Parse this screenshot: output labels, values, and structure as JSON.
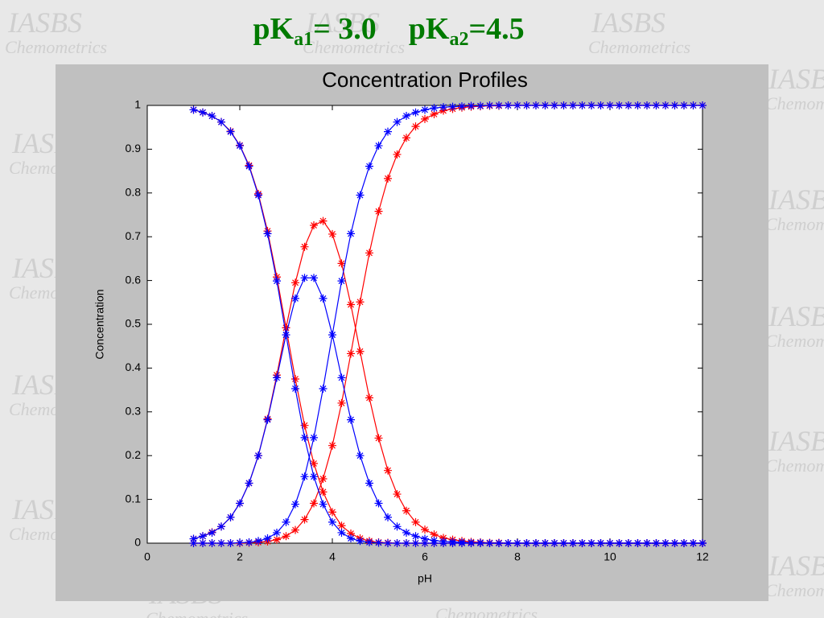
{
  "slide_title": [
    "pK",
    "a1",
    "= 3.0",
    "pK",
    "a2",
    "=4.5"
  ],
  "watermark": [
    "IASBS",
    "Chemometrics"
  ],
  "chart_data": {
    "type": "line",
    "title": "Concentration Profiles",
    "x_label": "pH",
    "y_label": "Concentration",
    "marker": "asterisk",
    "xlim": [
      0,
      12
    ],
    "xticks": [
      0,
      2,
      4,
      6,
      8,
      10,
      12
    ],
    "ylim": [
      0,
      1
    ],
    "yticks": [
      0,
      0.1,
      0.2,
      0.3,
      0.4,
      0.5,
      0.6,
      0.7,
      0.8,
      0.9,
      1
    ],
    "grid": false,
    "x": [
      1,
      1.2,
      1.4,
      1.6,
      1.8,
      2,
      2.2,
      2.4,
      2.6,
      2.8,
      3,
      3.2,
      3.4,
      3.6,
      3.8,
      4,
      4.2,
      4.4,
      4.6,
      4.8,
      5,
      5.2,
      5.4,
      5.6,
      5.8,
      6,
      6.2,
      6.4,
      6.6,
      6.8,
      7,
      7.2,
      7.4,
      7.6,
      7.8,
      8,
      8.2,
      8.4,
      8.6,
      8.8,
      9,
      9.2,
      9.4,
      9.6,
      9.8,
      10,
      10.2,
      10.4,
      10.6,
      10.8,
      11,
      11.2,
      11.4,
      11.6,
      11.8,
      12
    ],
    "series": [
      {
        "color": "#ff0000",
        "values": [
          0.99,
          0.984,
          0.976,
          0.962,
          0.941,
          0.909,
          0.863,
          0.798,
          0.713,
          0.608,
          0.492,
          0.375,
          0.269,
          0.182,
          0.117,
          0.071,
          0.04,
          0.022,
          0.011,
          0.005,
          0.002,
          0.001,
          0,
          0,
          0,
          0,
          0,
          0,
          0,
          0,
          0,
          0,
          0,
          0,
          0,
          0,
          0,
          0,
          0,
          0,
          0,
          0,
          0,
          0,
          0,
          0,
          0,
          0,
          0,
          0,
          0,
          0,
          0,
          0,
          0,
          0
        ]
      },
      {
        "color": "#ff0000",
        "values": [
          0.01,
          0.016,
          0.025,
          0.038,
          0.059,
          0.091,
          0.137,
          0.2,
          0.284,
          0.384,
          0.492,
          0.595,
          0.677,
          0.726,
          0.736,
          0.706,
          0.639,
          0.545,
          0.438,
          0.332,
          0.24,
          0.166,
          0.112,
          0.074,
          0.048,
          0.031,
          0.02,
          0.012,
          0.008,
          0.005,
          0.003,
          0.002,
          0.001,
          0.001,
          0,
          0,
          0,
          0,
          0,
          0,
          0,
          0,
          0,
          0,
          0,
          0,
          0,
          0,
          0,
          0,
          0,
          0,
          0,
          0,
          0,
          0
        ]
      },
      {
        "color": "#ff0000",
        "values": [
          0,
          0,
          0,
          0,
          0,
          0,
          0.001,
          0.002,
          0.004,
          0.008,
          0.016,
          0.03,
          0.054,
          0.091,
          0.147,
          0.223,
          0.32,
          0.433,
          0.551,
          0.663,
          0.758,
          0.833,
          0.888,
          0.926,
          0.952,
          0.969,
          0.98,
          0.988,
          0.992,
          0.995,
          0.997,
          0.998,
          0.999,
          0.999,
          1,
          1,
          1,
          1,
          1,
          1,
          1,
          1,
          1,
          1,
          1,
          1,
          1,
          1,
          1,
          1,
          1,
          1,
          1,
          1,
          1,
          1
        ]
      },
      {
        "color": "#0000ff",
        "values": [
          0.99,
          0.984,
          0.976,
          0.962,
          0.94,
          0.908,
          0.861,
          0.795,
          0.707,
          0.599,
          0.476,
          0.353,
          0.241,
          0.152,
          0.089,
          0.048,
          0.024,
          0.011,
          0.005,
          0.002,
          0.001,
          0,
          0,
          0,
          0,
          0,
          0,
          0,
          0,
          0,
          0,
          0,
          0,
          0,
          0,
          0,
          0,
          0,
          0,
          0,
          0,
          0,
          0,
          0,
          0,
          0,
          0,
          0,
          0,
          0,
          0,
          0,
          0,
          0,
          0,
          0
        ]
      },
      {
        "color": "#0000ff",
        "values": [
          0.01,
          0.016,
          0.024,
          0.038,
          0.059,
          0.091,
          0.137,
          0.2,
          0.282,
          0.378,
          0.476,
          0.559,
          0.606,
          0.606,
          0.559,
          0.476,
          0.378,
          0.282,
          0.2,
          0.137,
          0.091,
          0.059,
          0.038,
          0.024,
          0.016,
          0.01,
          0.006,
          0.004,
          0.003,
          0.002,
          0.001,
          0.001,
          0,
          0,
          0,
          0,
          0,
          0,
          0,
          0,
          0,
          0,
          0,
          0,
          0,
          0,
          0,
          0,
          0,
          0,
          0,
          0,
          0,
          0,
          0,
          0
        ]
      },
      {
        "color": "#0000ff",
        "values": [
          0,
          0,
          0,
          0,
          0,
          0.001,
          0.002,
          0.005,
          0.011,
          0.024,
          0.048,
          0.089,
          0.152,
          0.241,
          0.353,
          0.476,
          0.599,
          0.707,
          0.795,
          0.861,
          0.908,
          0.94,
          0.962,
          0.976,
          0.984,
          0.99,
          0.994,
          0.996,
          0.997,
          0.998,
          0.999,
          0.999,
          1,
          1,
          1,
          1,
          1,
          1,
          1,
          1,
          1,
          1,
          1,
          1,
          1,
          1,
          1,
          1,
          1,
          1,
          1,
          1,
          1,
          1,
          1,
          1
        ]
      }
    ]
  }
}
